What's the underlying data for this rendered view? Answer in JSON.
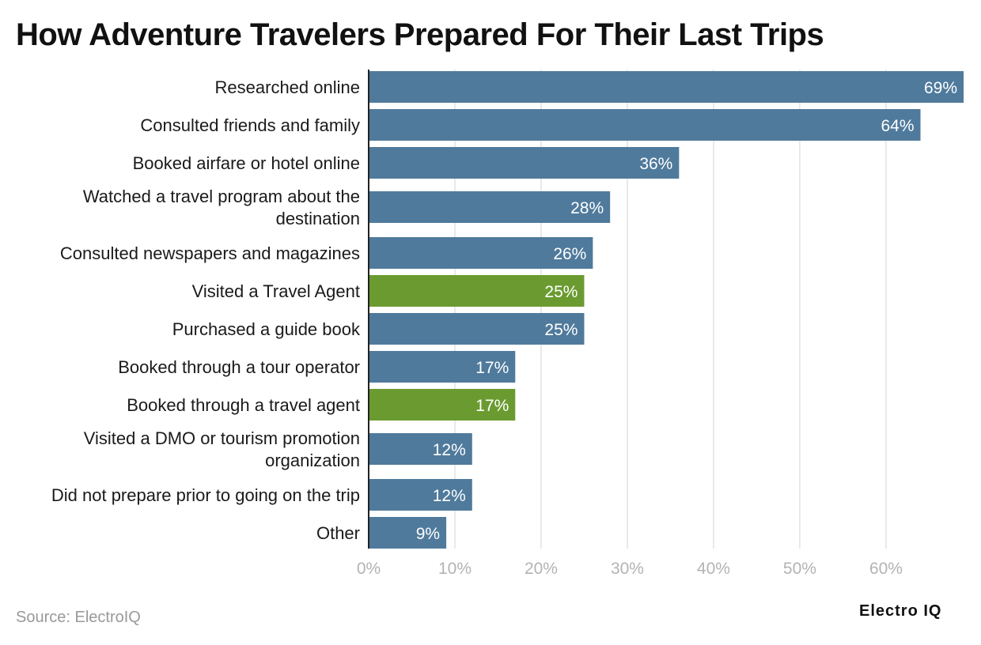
{
  "chart_data": {
    "type": "bar",
    "orientation": "horizontal",
    "title": "How Adventure Travelers Prepared For Their Last Trips",
    "categories": [
      "Researched online",
      "Consulted friends and family",
      "Booked airfare or hotel online",
      "Watched a travel program about the destination",
      "Consulted newspapers and magazines",
      "Visited a Travel Agent",
      "Purchased a guide book",
      "Booked through a tour operator",
      "Booked through a travel agent",
      "Visited a DMO or tourism promotion organization",
      "Did not prepare prior to going on the trip",
      "Other"
    ],
    "category_lines": [
      [
        "Researched online"
      ],
      [
        "Consulted friends and family"
      ],
      [
        "Booked airfare or hotel online"
      ],
      [
        "Watched a travel program about the",
        "destination"
      ],
      [
        "Consulted newspapers and magazines"
      ],
      [
        "Visited a Travel Agent"
      ],
      [
        "Purchased a guide book"
      ],
      [
        "Booked through a tour operator"
      ],
      [
        "Booked through a travel agent"
      ],
      [
        "Visited a DMO or tourism promotion",
        "organization"
      ],
      [
        "Did not prepare prior to going on the trip"
      ],
      [
        "Other"
      ]
    ],
    "values": [
      69,
      64,
      36,
      28,
      26,
      25,
      25,
      17,
      17,
      12,
      12,
      9
    ],
    "data_labels": [
      "69%",
      "64%",
      "36%",
      "28%",
      "26%",
      "25%",
      "25%",
      "17%",
      "17%",
      "12%",
      "12%",
      "9%"
    ],
    "highlighted": [
      false,
      false,
      false,
      false,
      false,
      true,
      false,
      false,
      true,
      false,
      false,
      false
    ],
    "xlim": [
      0,
      69
    ],
    "xticks": [
      0,
      10,
      20,
      30,
      40,
      50,
      60
    ],
    "xtick_labels": [
      "0%",
      "10%",
      "20%",
      "30%",
      "40%",
      "50%",
      "60%"
    ],
    "xlabel": "",
    "ylabel": "",
    "grid": true,
    "colors": {
      "bar": "#4f7a9c",
      "highlight": "#6b9b30",
      "grid": "#e2e2e2",
      "axis": "#222222"
    }
  },
  "footer": {
    "source": "Source: ElectroIQ",
    "brand": "Electro IQ"
  }
}
